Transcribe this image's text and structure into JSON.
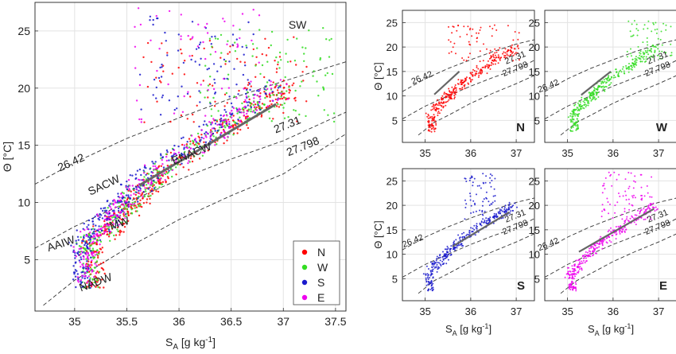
{
  "chart_data": [
    {
      "type": "scatter",
      "panel": "main",
      "xlabel": "S_A [g kg^-1]",
      "xlabel_main": "S",
      "xlabel_sub": "A",
      "xlabel_rest": " [g kg",
      "xlabel_sup": "-1",
      "xlabel_end": "]",
      "ylabel": "Θ [°C]",
      "xlim": [
        34.62,
        37.6
      ],
      "ylim": [
        0.5,
        27.5
      ],
      "xticks": [
        35,
        35.5,
        36,
        36.5,
        37,
        37.5
      ],
      "xtick_labels": [
        "35",
        "35.5",
        "36",
        "36.5",
        "37",
        "37.5"
      ],
      "yticks": [
        5,
        10,
        15,
        20,
        25
      ],
      "ytick_labels": [
        "5",
        "10",
        "15",
        "20",
        "25"
      ],
      "grid": true,
      "legend_position": "bottom-right",
      "series": [
        {
          "name": "N",
          "color": "#ff0000"
        },
        {
          "name": "W",
          "color": "#33dd22"
        },
        {
          "name": "S",
          "color": "#1a1acc"
        },
        {
          "name": "E",
          "color": "#ee00ee"
        }
      ],
      "isopycnals": [
        {
          "label": "26.42",
          "points": [
            [
              34.62,
              11.6
            ],
            [
              35.0,
              13.5
            ],
            [
              35.5,
              15.6
            ],
            [
              36.0,
              17.4
            ],
            [
              36.5,
              19.1
            ],
            [
              37.0,
              20.6
            ],
            [
              37.6,
              22.3
            ]
          ]
        },
        {
          "label": "27.31",
          "points": [
            [
              34.62,
              6.0
            ],
            [
              35.0,
              7.9
            ],
            [
              35.5,
              10.0
            ],
            [
              36.0,
              12.0
            ],
            [
              36.5,
              13.8
            ],
            [
              37.0,
              15.4
            ],
            [
              37.6,
              17.9
            ]
          ]
        },
        {
          "label": "27.798",
          "points": [
            [
              34.7,
              1.0
            ],
            [
              35.0,
              3.2
            ],
            [
              35.5,
              6.0
            ],
            [
              36.0,
              8.5
            ],
            [
              36.5,
              10.6
            ],
            [
              37.0,
              12.5
            ],
            [
              37.6,
              16.0
            ]
          ]
        }
      ],
      "reference_line": [
        [
          35.62,
          11.5
        ],
        [
          36.93,
          18.6
        ]
      ],
      "annotations": [
        {
          "text": "SW",
          "x": 37.05,
          "y": 25.2
        },
        {
          "text": "ENACW",
          "x": 35.95,
          "y": 13.3
        },
        {
          "text": "SACW",
          "x": 35.15,
          "y": 10.6
        },
        {
          "text": "MW",
          "x": 35.35,
          "y": 7.6
        },
        {
          "text": "AAIW",
          "x": 34.75,
          "y": 5.7
        },
        {
          "text": "NADW",
          "x": 35.06,
          "y": 2.2
        }
      ]
    },
    {
      "type": "scatter",
      "panel": "N",
      "series_name": "N",
      "color": "#ff0000",
      "xlim": [
        34.5,
        37.4
      ],
      "ylim": [
        0.5,
        27.5
      ],
      "xticks": [
        35,
        36,
        37
      ],
      "yticks": [
        5,
        10,
        15,
        20,
        25
      ],
      "grid": true,
      "ylabel": "Θ [°C]",
      "xlabel": "",
      "isopycnals": [
        {
          "label": "26.42",
          "points": [
            [
              34.5,
              10.9
            ],
            [
              35.0,
              13.5
            ],
            [
              35.5,
              15.6
            ],
            [
              36.0,
              17.4
            ],
            [
              36.5,
              19.1
            ],
            [
              37.0,
              20.6
            ],
            [
              37.4,
              21.5
            ]
          ]
        },
        {
          "label": "27.31",
          "points": [
            [
              34.5,
              5.3
            ],
            [
              35.0,
              7.9
            ],
            [
              35.5,
              10.0
            ],
            [
              36.0,
              12.0
            ],
            [
              36.5,
              13.8
            ],
            [
              37.0,
              15.4
            ],
            [
              37.4,
              17.3
            ]
          ]
        },
        {
          "label": "27.798",
          "points": [
            [
              34.85,
              2.0
            ],
            [
              35.2,
              4.6
            ],
            [
              35.5,
              6.0
            ],
            [
              36.0,
              8.5
            ],
            [
              36.5,
              10.6
            ],
            [
              37.0,
              12.5
            ],
            [
              37.4,
              14.2
            ]
          ]
        }
      ],
      "reference_line": [
        [
          35.2,
          10.3
        ],
        [
          35.75,
          15.0
        ]
      ],
      "isopycnal_labels": [
        {
          "text": "26.42",
          "x": 34.95,
          "y": 13.2
        },
        {
          "text": "27.31",
          "x": 37.0,
          "y": 17.3
        },
        {
          "text": "27.798",
          "x": 37.0,
          "y": 15.0
        }
      ],
      "tag": "N"
    },
    {
      "type": "scatter",
      "panel": "W",
      "series_name": "W",
      "color": "#33dd22",
      "xlim": [
        34.5,
        37.4
      ],
      "ylim": [
        0.5,
        27.5
      ],
      "xticks": [
        35,
        36,
        37
      ],
      "yticks": [
        5,
        10,
        15,
        20,
        25
      ],
      "grid": true,
      "ylabel": "",
      "xlabel": "",
      "isopycnals": [
        {
          "label": "26.42",
          "points": [
            [
              34.5,
              10.9
            ],
            [
              35.0,
              13.5
            ],
            [
              35.5,
              15.6
            ],
            [
              36.0,
              17.4
            ],
            [
              36.5,
              19.1
            ],
            [
              37.0,
              20.6
            ],
            [
              37.4,
              21.5
            ]
          ]
        },
        {
          "label": "27.31",
          "points": [
            [
              34.5,
              5.3
            ],
            [
              35.0,
              7.9
            ],
            [
              35.5,
              10.0
            ],
            [
              36.0,
              12.0
            ],
            [
              36.5,
              13.8
            ],
            [
              37.0,
              15.4
            ],
            [
              37.4,
              17.3
            ]
          ]
        },
        {
          "label": "27.798",
          "points": [
            [
              34.85,
              2.0
            ],
            [
              35.2,
              4.6
            ],
            [
              35.5,
              6.0
            ],
            [
              36.0,
              8.5
            ],
            [
              36.5,
              10.6
            ],
            [
              37.0,
              12.5
            ],
            [
              37.4,
              14.2
            ]
          ]
        }
      ],
      "reference_line": [
        [
          35.3,
          10.2
        ],
        [
          35.95,
          15.0
        ]
      ],
      "isopycnal_labels": [
        {
          "text": "26.42",
          "x": 34.6,
          "y": 11.5
        },
        {
          "text": "27.31",
          "x": 37.0,
          "y": 17.3
        },
        {
          "text": "27.798",
          "x": 37.0,
          "y": 15.0
        }
      ],
      "tag": "W"
    },
    {
      "type": "scatter",
      "panel": "S",
      "series_name": "S",
      "color": "#1a1acc",
      "xlim": [
        34.5,
        37.4
      ],
      "ylim": [
        0.5,
        27.5
      ],
      "xticks": [
        35,
        36,
        37
      ],
      "yticks": [
        5,
        10,
        15,
        20,
        25
      ],
      "grid": true,
      "ylabel": "Θ [°C]",
      "xlabel": "S_A [g kg^-1]",
      "isopycnals": [
        {
          "label": "26.42",
          "points": [
            [
              34.5,
              10.9
            ],
            [
              35.0,
              13.5
            ],
            [
              35.5,
              15.6
            ],
            [
              36.0,
              17.4
            ],
            [
              36.5,
              19.1
            ],
            [
              37.0,
              20.6
            ],
            [
              37.4,
              21.5
            ]
          ]
        },
        {
          "label": "27.31",
          "points": [
            [
              34.5,
              5.3
            ],
            [
              35.0,
              7.9
            ],
            [
              35.5,
              10.0
            ],
            [
              36.0,
              12.0
            ],
            [
              36.5,
              13.8
            ],
            [
              37.0,
              15.4
            ],
            [
              37.4,
              17.3
            ]
          ]
        },
        {
          "label": "27.798",
          "points": [
            [
              34.85,
              2.0
            ],
            [
              35.2,
              4.6
            ],
            [
              35.5,
              6.0
            ],
            [
              36.0,
              8.5
            ],
            [
              36.5,
              10.6
            ],
            [
              37.0,
              12.5
            ],
            [
              37.4,
              14.2
            ]
          ]
        }
      ],
      "reference_line": [
        [
          35.6,
          11.6
        ],
        [
          36.85,
          18.6
        ]
      ],
      "isopycnal_labels": [
        {
          "text": "26.42",
          "x": 34.75,
          "y": 12.2
        },
        {
          "text": "27.31",
          "x": 37.0,
          "y": 17.3
        },
        {
          "text": "27.798",
          "x": 37.0,
          "y": 15.0
        }
      ],
      "tag": "S"
    },
    {
      "type": "scatter",
      "panel": "E",
      "series_name": "E",
      "color": "#ee00ee",
      "xlim": [
        34.5,
        37.4
      ],
      "ylim": [
        0.5,
        27.5
      ],
      "xticks": [
        35,
        36,
        37
      ],
      "yticks": [
        5,
        10,
        15,
        20,
        25
      ],
      "grid": true,
      "ylabel": "",
      "xlabel": "S_A [g kg^-1]",
      "isopycnals": [
        {
          "label": "26.42",
          "points": [
            [
              34.5,
              10.9
            ],
            [
              35.0,
              13.5
            ],
            [
              35.5,
              15.6
            ],
            [
              36.0,
              17.4
            ],
            [
              36.5,
              19.1
            ],
            [
              37.0,
              20.6
            ],
            [
              37.4,
              21.5
            ]
          ]
        },
        {
          "label": "27.31",
          "points": [
            [
              34.5,
              5.3
            ],
            [
              35.0,
              7.9
            ],
            [
              35.5,
              10.0
            ],
            [
              36.0,
              12.0
            ],
            [
              36.5,
              13.8
            ],
            [
              37.0,
              15.4
            ],
            [
              37.4,
              17.3
            ]
          ]
        },
        {
          "label": "27.798",
          "points": [
            [
              34.85,
              2.0
            ],
            [
              35.2,
              4.6
            ],
            [
              35.5,
              6.0
            ],
            [
              36.0,
              8.5
            ],
            [
              36.5,
              10.6
            ],
            [
              37.0,
              12.5
            ],
            [
              37.4,
              14.2
            ]
          ]
        }
      ],
      "reference_line": [
        [
          35.25,
          10.5
        ],
        [
          36.9,
          19.3
        ]
      ],
      "isopycnal_labels": [
        {
          "text": "26.42",
          "x": 34.6,
          "y": 11.5
        },
        {
          "text": "27.31",
          "x": 37.0,
          "y": 17.3
        },
        {
          "text": "27.798",
          "x": 37.0,
          "y": 15.0
        }
      ],
      "tag": "E"
    }
  ]
}
